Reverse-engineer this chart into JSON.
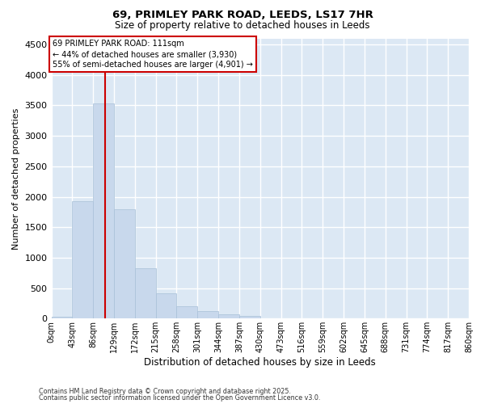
{
  "title_line1": "69, PRIMLEY PARK ROAD, LEEDS, LS17 7HR",
  "title_line2": "Size of property relative to detached houses in Leeds",
  "xlabel": "Distribution of detached houses by size in Leeds",
  "ylabel": "Number of detached properties",
  "bar_color": "#c8d8ec",
  "bar_edge_color": "#a8c0d8",
  "background_color": "#dce8f4",
  "grid_color": "#ffffff",
  "annotation_box_color": "#cc0000",
  "vline_color": "#cc0000",
  "bin_labels": [
    "0sqm",
    "43sqm",
    "86sqm",
    "129sqm",
    "172sqm",
    "215sqm",
    "258sqm",
    "301sqm",
    "344sqm",
    "387sqm",
    "430sqm",
    "473sqm",
    "516sqm",
    "559sqm",
    "602sqm",
    "645sqm",
    "688sqm",
    "731sqm",
    "774sqm",
    "817sqm",
    "860sqm"
  ],
  "bar_heights": [
    30,
    1930,
    3530,
    1800,
    830,
    420,
    200,
    120,
    70,
    40,
    10,
    0,
    0,
    0,
    0,
    0,
    0,
    0,
    0,
    0
  ],
  "ylim": [
    0,
    4600
  ],
  "yticks": [
    0,
    500,
    1000,
    1500,
    2000,
    2500,
    3000,
    3500,
    4000,
    4500
  ],
  "property_size_sqm": 111,
  "annotation_text": "69 PRIMLEY PARK ROAD: 111sqm\n← 44% of detached houses are smaller (3,930)\n55% of semi-detached houses are larger (4,901) →",
  "footnote_line1": "Contains HM Land Registry data © Crown copyright and database right 2025.",
  "footnote_line2": "Contains public sector information licensed under the Open Government Licence v3.0.",
  "bin_width": 43,
  "n_bins": 20
}
